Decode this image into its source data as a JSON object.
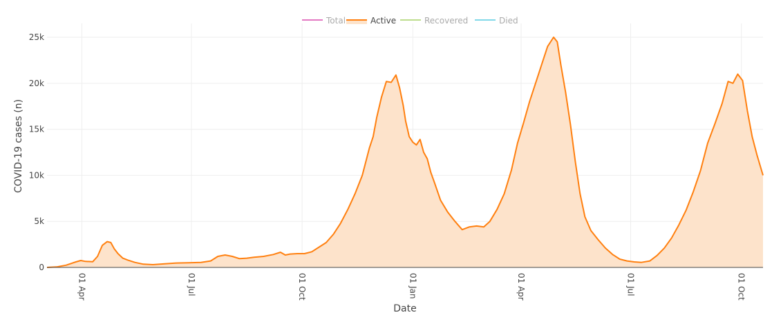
{
  "colors": {
    "total": "#e377c2",
    "active": "#ff7f0e",
    "active_fill": "#fde3cb",
    "recovered": "#bcdc8c",
    "died": "#80d8e8",
    "grid": "#eeeeee",
    "axis": "#444444",
    "tick_text": "#444444",
    "legend_inactive_text": "#aaaaaa",
    "legend_active_text": "#444444"
  },
  "legend": [
    {
      "key": "total",
      "label": "Total",
      "active": false
    },
    {
      "key": "active",
      "label": "Active",
      "active": true
    },
    {
      "key": "recovered",
      "label": "Recovered",
      "active": false
    },
    {
      "key": "died",
      "label": "Died",
      "active": false
    }
  ],
  "chart_data": {
    "type": "area",
    "xlabel": "Date",
    "ylabel": "COVID-19 cases (n)",
    "xlim": [
      "2020-03-03",
      "2021-10-19"
    ],
    "ylim": [
      0,
      26500
    ],
    "yticks": [
      {
        "value": 0,
        "label": "0"
      },
      {
        "value": 5000,
        "label": "5k"
      },
      {
        "value": 10000,
        "label": "10k"
      },
      {
        "value": 15000,
        "label": "15k"
      },
      {
        "value": 20000,
        "label": "20k"
      },
      {
        "value": 25000,
        "label": "25k"
      }
    ],
    "xticks": [
      {
        "date": "2020-04-01",
        "label": "01 Apr"
      },
      {
        "date": "2020-07-01",
        "label": "01 Jul"
      },
      {
        "date": "2020-10-01",
        "label": "01 Oct"
      },
      {
        "date": "2021-01-01",
        "label": "01 Jan"
      },
      {
        "date": "2021-04-01",
        "label": "01 Apr"
      },
      {
        "date": "2021-07-01",
        "label": "01 Jul"
      },
      {
        "date": "2021-10-01",
        "label": "01 Oct"
      }
    ],
    "grid": true,
    "legend_position": "top",
    "series": [
      {
        "name": "Active",
        "x": [
          "2020-03-03",
          "2020-03-11",
          "2020-03-19",
          "2020-03-27",
          "2020-03-31",
          "2020-04-04",
          "2020-04-10",
          "2020-04-14",
          "2020-04-18",
          "2020-04-22",
          "2020-04-25",
          "2020-04-28",
          "2020-05-01",
          "2020-05-05",
          "2020-05-09",
          "2020-05-15",
          "2020-05-22",
          "2020-05-30",
          "2020-06-09",
          "2020-06-19",
          "2020-06-29",
          "2020-07-09",
          "2020-07-17",
          "2020-07-23",
          "2020-07-29",
          "2020-08-04",
          "2020-08-10",
          "2020-08-16",
          "2020-08-22",
          "2020-08-30",
          "2020-09-07",
          "2020-09-13",
          "2020-09-17",
          "2020-09-21",
          "2020-09-27",
          "2020-10-03",
          "2020-10-09",
          "2020-10-15",
          "2020-10-21",
          "2020-10-27",
          "2020-11-02",
          "2020-11-08",
          "2020-11-14",
          "2020-11-20",
          "2020-11-26",
          "2020-11-29",
          "2020-12-02",
          "2020-12-06",
          "2020-12-10",
          "2020-12-14",
          "2020-12-18",
          "2020-12-21",
          "2020-12-24",
          "2020-12-26",
          "2020-12-29",
          "2021-01-01",
          "2021-01-04",
          "2021-01-07",
          "2021-01-10",
          "2021-01-13",
          "2021-01-16",
          "2021-01-19",
          "2021-01-24",
          "2021-01-30",
          "2021-02-05",
          "2021-02-11",
          "2021-02-17",
          "2021-02-23",
          "2021-03-01",
          "2021-03-06",
          "2021-03-12",
          "2021-03-18",
          "2021-03-24",
          "2021-03-29",
          "2021-04-03",
          "2021-04-08",
          "2021-04-13",
          "2021-04-18",
          "2021-04-23",
          "2021-04-28",
          "2021-05-01",
          "2021-05-04",
          "2021-05-08",
          "2021-05-12",
          "2021-05-16",
          "2021-05-20",
          "2021-05-24",
          "2021-05-29",
          "2021-06-04",
          "2021-06-10",
          "2021-06-16",
          "2021-06-22",
          "2021-06-28",
          "2021-07-04",
          "2021-07-10",
          "2021-07-17",
          "2021-07-23",
          "2021-07-29",
          "2021-08-04",
          "2021-08-10",
          "2021-08-16",
          "2021-08-22",
          "2021-08-28",
          "2021-09-03",
          "2021-09-09",
          "2021-09-15",
          "2021-09-20",
          "2021-09-24",
          "2021-09-28",
          "2021-10-02",
          "2021-10-06",
          "2021-10-10",
          "2021-10-14",
          "2021-10-19"
        ],
        "values": [
          0,
          50,
          250,
          600,
          750,
          650,
          620,
          1200,
          2400,
          2800,
          2700,
          2000,
          1500,
          1000,
          800,
          550,
          350,
          300,
          400,
          480,
          500,
          550,
          700,
          1200,
          1350,
          1200,
          950,
          1000,
          1100,
          1200,
          1400,
          1650,
          1350,
          1450,
          1500,
          1500,
          1700,
          2200,
          2700,
          3600,
          4800,
          6300,
          8000,
          10000,
          13000,
          14200,
          16300,
          18500,
          20200,
          20100,
          20900,
          19500,
          17600,
          15900,
          14200,
          13600,
          13300,
          13900,
          12500,
          11800,
          10300,
          9200,
          7300,
          6000,
          5000,
          4100,
          4400,
          4500,
          4400,
          5000,
          6300,
          8000,
          10600,
          13500,
          15700,
          18000,
          20000,
          22000,
          24000,
          25000,
          24500,
          22000,
          19000,
          15500,
          11500,
          8000,
          5500,
          4000,
          3000,
          2100,
          1400,
          900,
          700,
          600,
          550,
          700,
          1300,
          2100,
          3200,
          4600,
          6200,
          8200,
          10500,
          13500,
          15600,
          17800,
          20200,
          20000,
          21000,
          20300,
          17000,
          14200,
          12200,
          10000
        ]
      }
    ]
  }
}
